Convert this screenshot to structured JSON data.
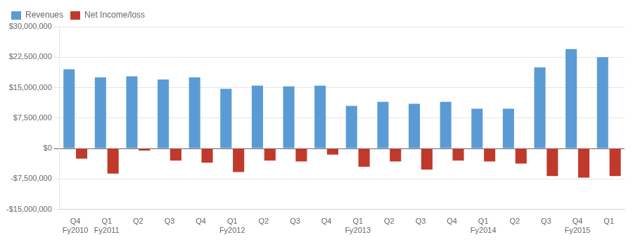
{
  "chart_data": {
    "type": "bar",
    "categories": [
      "Q4",
      "Q1",
      "Q2",
      "Q3",
      "Q4",
      "Q1",
      "Q2",
      "Q3",
      "Q4",
      "Q1",
      "Q2",
      "Q3",
      "Q4",
      "Q1",
      "Q2",
      "Q3",
      "Q4",
      "Q1"
    ],
    "series": [
      {
        "name": "Revenues",
        "color": "#5B9BD5",
        "values": [
          19500000,
          17500000,
          17800000,
          17000000,
          17500000,
          14700000,
          15500000,
          15300000,
          15500000,
          10500000,
          11500000,
          11000000,
          11500000,
          9800000,
          9800000,
          20000000,
          24500000,
          22500000
        ]
      },
      {
        "name": "Net Income/loss",
        "color": "#C0392B",
        "values": [
          -2500000,
          -6200000,
          -500000,
          -3000000,
          -3500000,
          -5800000,
          -3000000,
          -3200000,
          -1500000,
          -4500000,
          -3200000,
          -5200000,
          -3000000,
          -3200000,
          -3700000,
          -6800000,
          -7200000,
          -6800000
        ]
      }
    ],
    "annotations": [
      {
        "text": "Fy2010",
        "x": 0
      },
      {
        "text": "Fy2011",
        "x": 1
      },
      {
        "text": "Fy2012",
        "x": 5
      },
      {
        "text": "Fy2013",
        "x": 9
      },
      {
        "text": "Fy2014",
        "x": 13
      },
      {
        "text": "Fy2015",
        "x": 16
      }
    ],
    "ylim": [
      -15000000,
      30000000
    ],
    "yticks": [
      {
        "value": -15000000,
        "label": "-$15,000,000"
      },
      {
        "value": -7500000,
        "label": "-$7,500,000"
      },
      {
        "value": 0,
        "label": "$0"
      },
      {
        "value": 7500000,
        "label": "$7,500,000"
      },
      {
        "value": 15000000,
        "label": "$15,000,000"
      },
      {
        "value": 22500000,
        "label": "$22,500,000"
      },
      {
        "value": 30000000,
        "label": "$30,000,000"
      }
    ],
    "grid": true,
    "legend": "upper left"
  }
}
